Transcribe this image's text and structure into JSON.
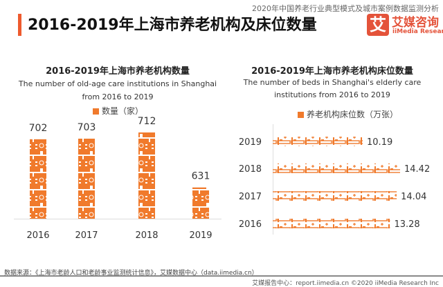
{
  "header": {
    "title": "2016-2019年上海市养老机构及床位数量",
    "report_name": "2020年中国养老行业典型模式及城市案例数据监测分析",
    "logo": {
      "mark": "艾",
      "cn": "艾媒咨询",
      "en": "iiMedia Research"
    }
  },
  "colors": {
    "accent": "#ee5a2e",
    "bar": "#f07a2c",
    "logo": "#e4533a"
  },
  "chart_data": [
    {
      "type": "bar",
      "orientation": "vertical",
      "pictogram_icon": "building-icon",
      "title": "2016-2019年上海市养老机构数量",
      "subtitle": [
        "The number of old-age care institutions in Shanghai",
        "from 2016 to 2019"
      ],
      "legend": "数量（家）",
      "categories": [
        "2016",
        "2017",
        "2018",
        "2019"
      ],
      "values": [
        702,
        703,
        712,
        631
      ],
      "ylim": [
        585,
        720
      ]
    },
    {
      "type": "bar",
      "orientation": "horizontal",
      "pictogram_icon": "bed-icon",
      "title": "2016-2019年上海市养老机构床位数量",
      "subtitle": [
        "The number of beds in Shanghai's elderly care",
        "institutions from 2016 to 2019"
      ],
      "legend": "养老机构床位数（万张）",
      "categories": [
        "2019",
        "2018",
        "2017",
        "2016"
      ],
      "values": [
        10.19,
        14.42,
        14.04,
        13.28
      ],
      "xlim": [
        0,
        15
      ]
    }
  ],
  "footer": {
    "source": "数据来源：《上海市老龄人口和老龄事业监测统计信息》，艾媒数据中心（data.iimedia.cn）",
    "credit": "艾媒报告中心：report.iimedia.cn  ©2020  iiMedia Research Inc"
  }
}
